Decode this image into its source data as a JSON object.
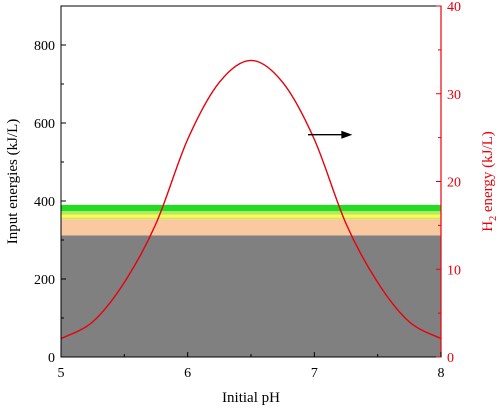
{
  "chart_data": {
    "type": "area",
    "xlabel": "Initial pH",
    "ylabel_left": "Input energies (kJ/L)",
    "ylabel_right_main": "H",
    "ylabel_right_sub": "2",
    "ylabel_right_rest": " energy (kJ/L)",
    "xlim": [
      5,
      8
    ],
    "ylim_left": [
      0,
      900
    ],
    "ylim_right": [
      0,
      40
    ],
    "x_ticks": [
      "5",
      "6",
      "7",
      "8"
    ],
    "y_left_ticks": [
      "0",
      "200",
      "400",
      "600",
      "800"
    ],
    "y_right_ticks": [
      "0",
      "10",
      "20",
      "30",
      "40"
    ],
    "stacked_layers": [
      {
        "y0": 0,
        "y1": 312,
        "color": "#808080"
      },
      {
        "y0": 312,
        "y1": 353,
        "color": "#fac9a0"
      },
      {
        "y0": 353,
        "y1": 358,
        "color": "#d6e17a"
      },
      {
        "y0": 358,
        "y1": 365,
        "color": "#ffff33"
      },
      {
        "y0": 365,
        "y1": 374,
        "color": "#b5e86a"
      },
      {
        "y0": 374,
        "y1": 390,
        "color": "#22dd22"
      }
    ],
    "h2_series": {
      "axis": "right",
      "color": "#e8000b",
      "x": [
        5.0,
        5.25,
        5.5,
        5.75,
        6.0,
        6.25,
        6.5,
        6.75,
        7.0,
        7.25,
        7.5,
        7.75,
        8.0
      ],
      "y": [
        2.1,
        4.0,
        8.5,
        15.2,
        24.8,
        31.3,
        33.8,
        31.3,
        24.8,
        15.2,
        8.5,
        4.0,
        2.1
      ]
    },
    "arrow": {
      "from_x": 6.95,
      "to_x": 7.3,
      "y_left": 570,
      "color": "#000000"
    },
    "colors": {
      "left_axis": "#000000",
      "right_axis": "#e8000b"
    }
  }
}
